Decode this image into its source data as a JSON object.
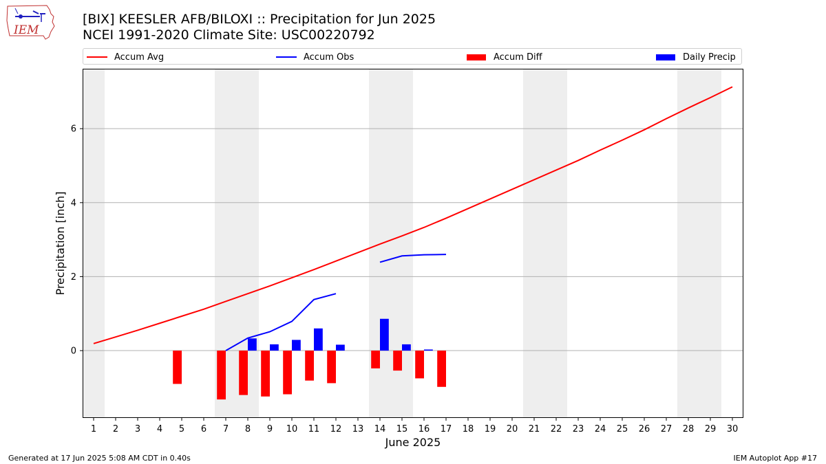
{
  "header": {
    "title_line1": "[BIX] KEESLER AFB/BILOXI :: Precipitation for Jun 2025",
    "title_line2": "NCEI 1991-2020 Climate Site: USC00220792",
    "logo_text": "IEM"
  },
  "footer": {
    "generated": "Generated at 17 Jun 2025 5:08 AM CDT in 0.40s",
    "app": "IEM Autoplot App #17"
  },
  "colors": {
    "accum_avg": "#ff0000",
    "accum_obs": "#0000ff",
    "accum_diff": "#ff0000",
    "daily_precip": "#0000ff",
    "weekend_band": "#eeeeee",
    "grid": "#b0b0b0"
  },
  "chart_data": {
    "type": "bar",
    "title": "[BIX] KEESLER AFB/BILOXI :: Precipitation for Jun 2025",
    "subtitle": "NCEI 1991-2020 Climate Site: USC00220792",
    "xlabel": "June 2025",
    "ylabel": "Precipitation [inch]",
    "xlim": [
      0.5,
      30.5
    ],
    "ylim": [
      -1.82,
      7.62
    ],
    "yticks": [
      0,
      2,
      4,
      6
    ],
    "xticks": [
      1,
      2,
      3,
      4,
      5,
      6,
      7,
      8,
      9,
      10,
      11,
      12,
      13,
      14,
      15,
      16,
      17,
      18,
      19,
      20,
      21,
      22,
      23,
      24,
      25,
      26,
      27,
      28,
      29,
      30
    ],
    "grid": "horizontal",
    "legend_position": "top",
    "weekend_bands": [
      [
        0.5,
        1.5
      ],
      [
        6.5,
        8.5
      ],
      [
        13.5,
        15.5
      ],
      [
        20.5,
        22.5
      ],
      [
        27.5,
        29.5
      ]
    ],
    "series": [
      {
        "name": "Accum Avg",
        "kind": "line",
        "x": [
          1,
          2,
          3,
          4,
          5,
          6,
          7,
          8,
          9,
          10,
          11,
          12,
          13,
          14,
          15,
          16,
          17,
          18,
          19,
          20,
          21,
          22,
          23,
          24,
          25,
          26,
          27,
          28,
          29,
          30
        ],
        "values": [
          0.19,
          0.37,
          0.55,
          0.74,
          0.93,
          1.12,
          1.33,
          1.54,
          1.75,
          1.97,
          2.19,
          2.42,
          2.65,
          2.88,
          3.1,
          3.33,
          3.58,
          3.84,
          4.1,
          4.36,
          4.62,
          4.88,
          5.14,
          5.42,
          5.69,
          5.97,
          6.27,
          6.56,
          6.84,
          7.13
        ]
      },
      {
        "name": "Accum Obs",
        "kind": "line",
        "segments": [
          {
            "x": [
              7,
              8,
              9,
              10,
              11,
              12
            ],
            "values": [
              0.0,
              0.34,
              0.51,
              0.79,
              1.38,
              1.54
            ]
          },
          {
            "x": [
              14,
              15,
              16,
              17
            ],
            "values": [
              2.39,
              2.56,
              2.59,
              2.6
            ]
          }
        ]
      },
      {
        "name": "Accum Diff",
        "kind": "bar",
        "x": [
          5,
          7,
          8,
          9,
          10,
          11,
          12,
          14,
          15,
          16,
          17
        ],
        "values": [
          -0.9,
          -1.32,
          -1.2,
          -1.24,
          -1.18,
          -0.81,
          -0.88,
          -0.48,
          -0.54,
          -0.75,
          -0.98
        ]
      },
      {
        "name": "Daily Precip",
        "kind": "bar",
        "x": [
          8,
          9,
          10,
          11,
          12,
          14,
          15,
          16
        ],
        "values": [
          0.33,
          0.17,
          0.29,
          0.6,
          0.16,
          0.86,
          0.17,
          0.03
        ]
      }
    ]
  }
}
